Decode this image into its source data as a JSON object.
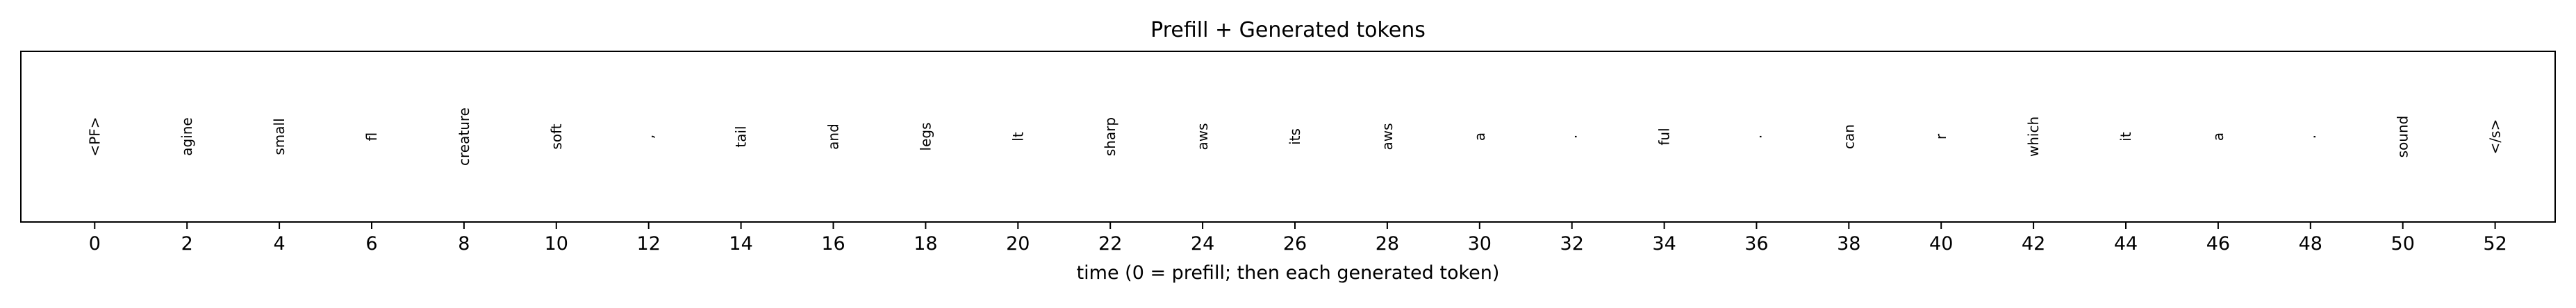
{
  "chart_data": {
    "type": "token-timeline",
    "title": "Prefill + Generated tokens",
    "xlabel": "time (0 = prefill; then each generated token)",
    "ylabel": "",
    "xlim": [
      -1.6,
      53.3
    ],
    "xticks": [
      0,
      2,
      4,
      6,
      8,
      10,
      12,
      14,
      16,
      18,
      20,
      22,
      24,
      26,
      28,
      30,
      32,
      34,
      36,
      38,
      40,
      42,
      44,
      46,
      48,
      50,
      52
    ],
    "grid": false,
    "tokens": [
      {
        "x": 0,
        "label": "<PF>"
      },
      {
        "x": 2,
        "label": "agine"
      },
      {
        "x": 4,
        "label": "small"
      },
      {
        "x": 6,
        "label": "fl"
      },
      {
        "x": 8,
        "label": "creature"
      },
      {
        "x": 10,
        "label": "soft"
      },
      {
        "x": 12,
        "label": ","
      },
      {
        "x": 14,
        "label": "tail"
      },
      {
        "x": 16,
        "label": "and"
      },
      {
        "x": 18,
        "label": "legs"
      },
      {
        "x": 20,
        "label": "lt"
      },
      {
        "x": 22,
        "label": "sharp"
      },
      {
        "x": 24,
        "label": "aws"
      },
      {
        "x": 26,
        "label": "its"
      },
      {
        "x": 28,
        "label": "aws"
      },
      {
        "x": 30,
        "label": "a"
      },
      {
        "x": 32,
        "label": "."
      },
      {
        "x": 34,
        "label": "ful"
      },
      {
        "x": 36,
        "label": "."
      },
      {
        "x": 38,
        "label": "can"
      },
      {
        "x": 40,
        "label": "r"
      },
      {
        "x": 42,
        "label": "which"
      },
      {
        "x": 44,
        "label": "it"
      },
      {
        "x": 46,
        "label": "a"
      },
      {
        "x": 48,
        "label": "."
      },
      {
        "x": 50,
        "label": "sound"
      },
      {
        "x": 52,
        "label": "</s>"
      }
    ]
  }
}
